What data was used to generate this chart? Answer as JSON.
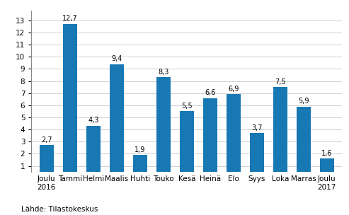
{
  "categories": [
    "Joulu\n2016",
    "Tammi",
    "Helmi",
    "Maalis",
    "Huhti",
    "Touko",
    "Kesä",
    "Heinä",
    "Elo",
    "Syys",
    "Loka",
    "Marras",
    "Joulu\n2017"
  ],
  "values": [
    2.7,
    12.7,
    4.3,
    9.4,
    1.9,
    8.3,
    5.5,
    6.6,
    6.9,
    3.7,
    7.5,
    5.9,
    1.6
  ],
  "bar_color": "#1878b4",
  "ylim": [
    0.5,
    13.8
  ],
  "yticks": [
    1,
    2,
    3,
    4,
    5,
    6,
    7,
    8,
    9,
    10,
    11,
    12,
    13
  ],
  "source_text": "Lähde: Tilastokeskus",
  "background_color": "#ffffff",
  "grid_color": "#c8c8c8",
  "tick_fontsize": 7.5,
  "source_fontsize": 7.5,
  "value_label_fontsize": 7.0,
  "bar_width": 0.6
}
